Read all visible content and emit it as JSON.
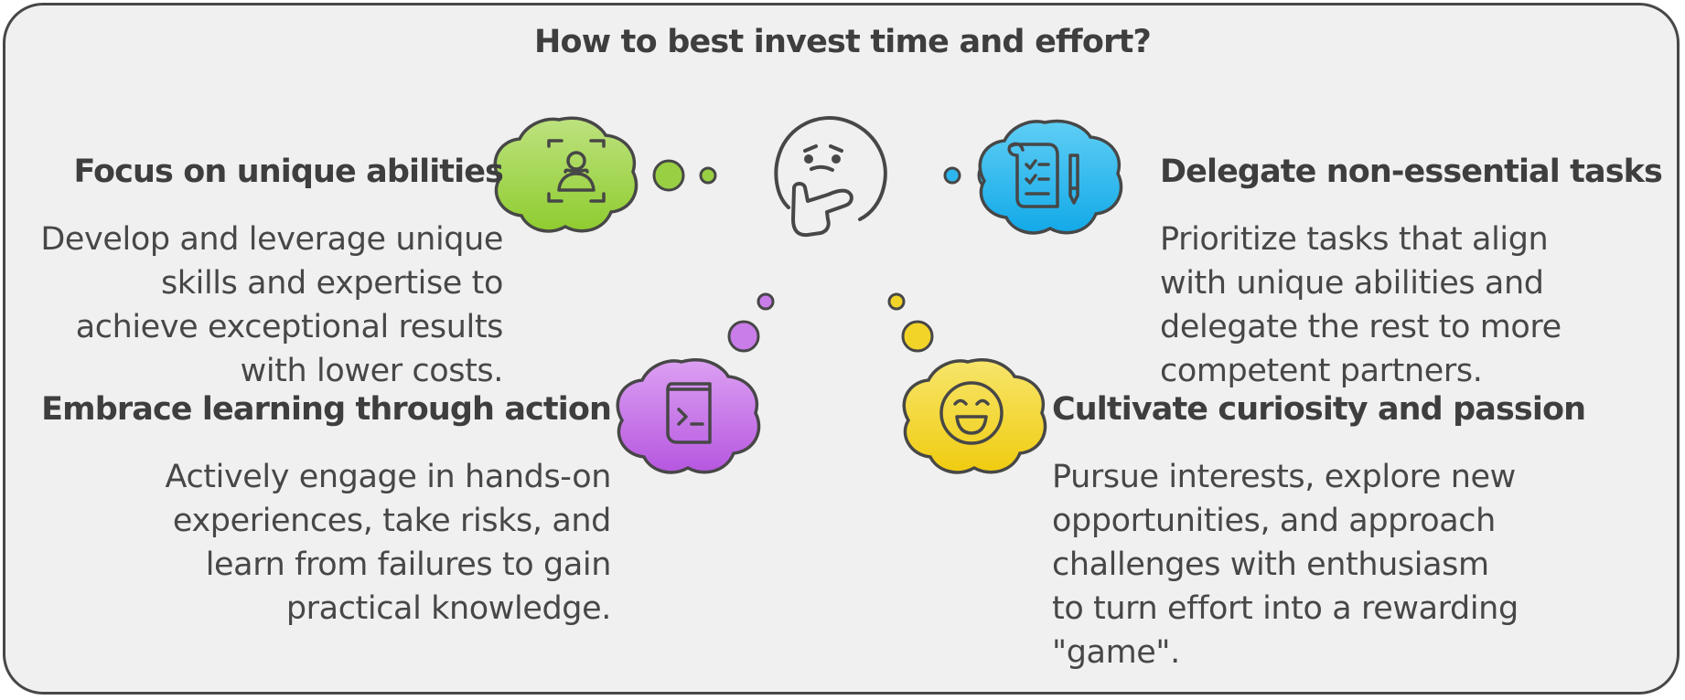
{
  "title": "How to best invest time and effort?",
  "sections": [
    {
      "heading": "Focus on unique abilities",
      "body": "Develop and leverage unique skills and expertise to achieve exceptional results with lower costs.",
      "icon": "user-focus-icon",
      "color": "#8fcc3f"
    },
    {
      "heading": "Delegate non-essential tasks",
      "body": "Prioritize tasks that align with unique abilities and delegate the rest to more competent partners.",
      "icon": "clipboard-pencil-icon",
      "color": "#1ab1ec"
    },
    {
      "heading": "Embrace learning through action",
      "body": "Actively engage in hands-on experiences, take risks, and learn from failures to gain practical knowledge.",
      "icon": "terminal-book-icon",
      "color": "#c46be6"
    },
    {
      "heading": "Cultivate curiosity and passion",
      "body": "Pursue interests, explore new opportunities, and approach challenges with enthusiasm to turn effort into a rewarding \"game\".",
      "icon": "smiley-face-icon",
      "color": "#f2d21d"
    }
  ],
  "center_icon": "thinking-face-icon"
}
